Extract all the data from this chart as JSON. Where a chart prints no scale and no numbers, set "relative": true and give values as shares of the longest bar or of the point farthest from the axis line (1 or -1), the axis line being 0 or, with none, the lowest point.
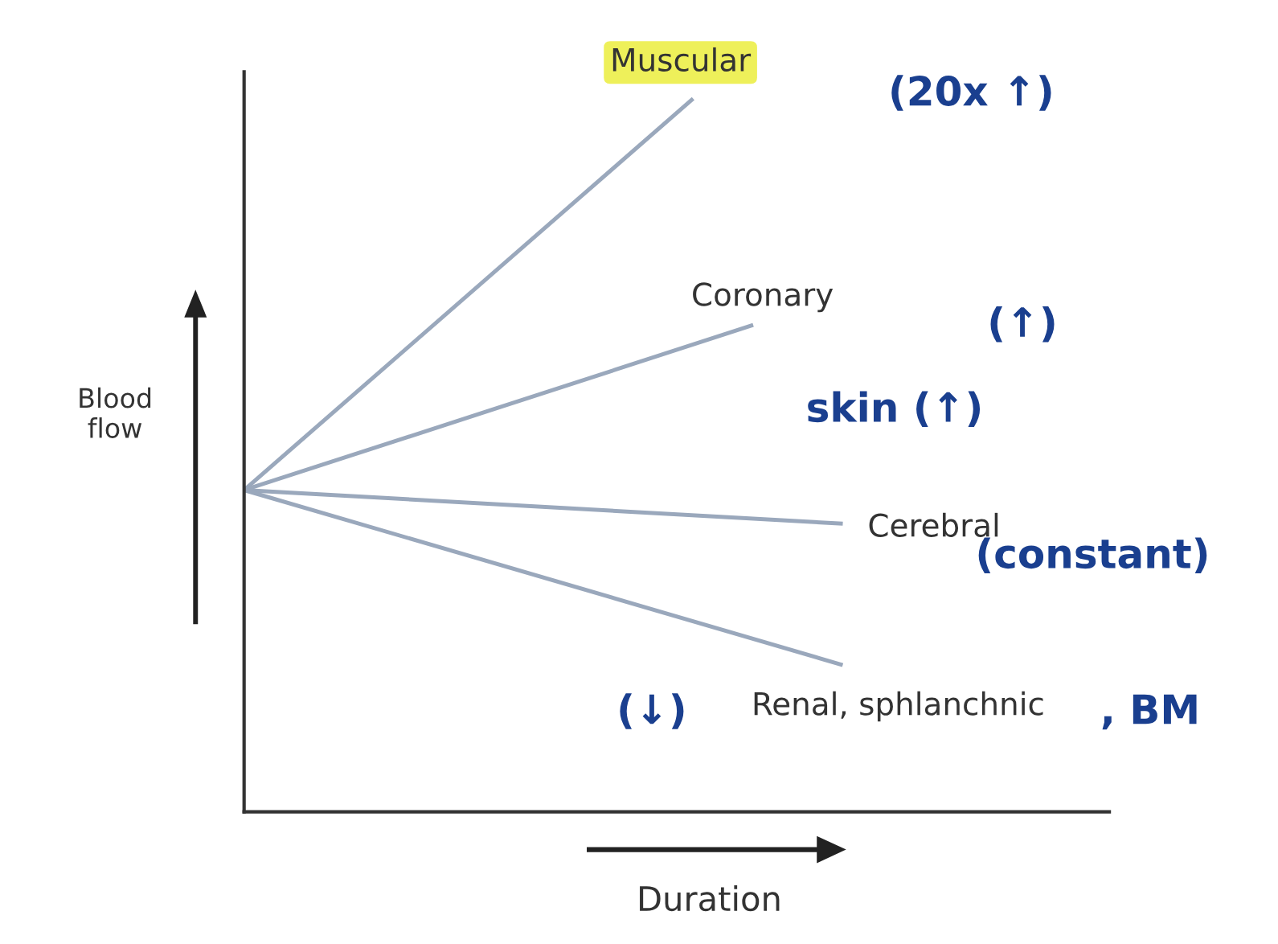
{
  "chart_data": {
    "type": "line",
    "relative": true,
    "xlabel": "Duration",
    "ylabel": "Blood flow",
    "categories": [
      null,
      null,
      null,
      null,
      null,
      null,
      null,
      null,
      null,
      null,
      null,
      null,
      null,
      null,
      null,
      null,
      null,
      null,
      null,
      null,
      null
    ],
    "series": [
      {
        "name": "Muscular",
        "color": "#9aa8bc",
        "values": [
          0.452,
          null,
          null,
          null,
          null,
          null,
          null,
          null,
          null,
          null,
          null,
          null,
          null,
          null,
          null,
          1,
          null,
          null,
          null,
          null,
          null
        ]
      },
      {
        "name": "Coronary",
        "color": "#9aa8bc",
        "values": [
          0.452,
          null,
          null,
          null,
          null,
          null,
          null,
          null,
          null,
          null,
          null,
          null,
          null,
          null,
          null,
          null,
          null,
          0.683,
          null,
          null,
          null
        ]
      },
      {
        "name": "Cerebral",
        "color": "#9aa8bc",
        "values": [
          0.452,
          null,
          null,
          null,
          null,
          null,
          null,
          null,
          null,
          null,
          null,
          null,
          null,
          null,
          null,
          null,
          null,
          null,
          null,
          null,
          0.405
        ]
      },
      {
        "name": "Renal, sphlanchnic",
        "color": "#9aa8bc",
        "values": [
          0.452,
          null,
          null,
          null,
          null,
          null,
          null,
          null,
          null,
          null,
          null,
          null,
          null,
          null,
          null,
          null,
          null,
          null,
          null,
          null,
          0.207
        ]
      }
    ],
    "annotations": [
      "(20x ↑)",
      "(↑)",
      "skin (↑)",
      "(constant)",
      "(↓)",
      ", BM"
    ],
    "legend": false,
    "marker": "none",
    "line_style": "solid"
  }
}
